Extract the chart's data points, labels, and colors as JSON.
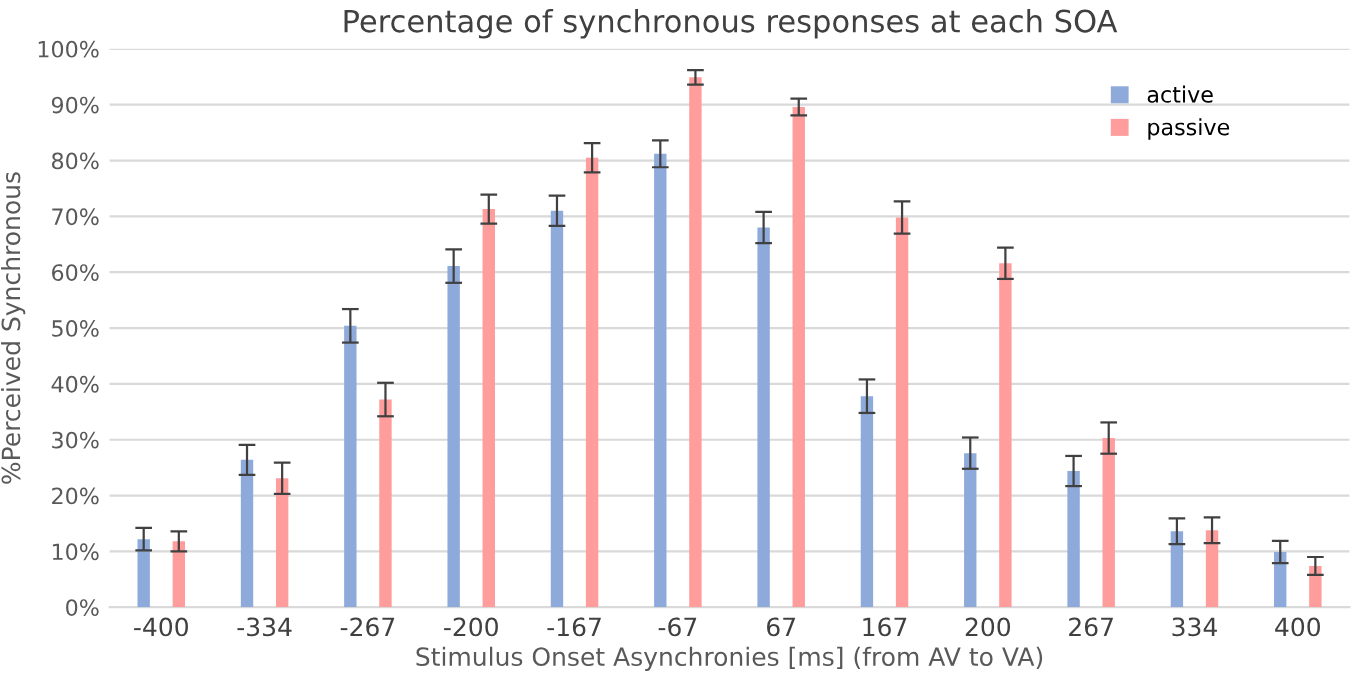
{
  "chart_data": {
    "type": "bar",
    "title": "Percentage of synchronous responses at each SOA",
    "xlabel": "Stimulus Onset Asynchronies [ms] (from AV to VA)",
    "ylabel": "%Perceived Synchronous",
    "categories": [
      "-400",
      "-334",
      "-267",
      "-200",
      "-167",
      "-67",
      "67",
      "167",
      "200",
      "267",
      "334",
      "400"
    ],
    "series": [
      {
        "name": "active",
        "color": "#8eaadb",
        "values": [
          12.2,
          26.4,
          50.4,
          61.1,
          71.0,
          81.2,
          68.0,
          37.8,
          27.6,
          24.4,
          13.6,
          9.9
        ],
        "errors": [
          2.0,
          2.7,
          3.0,
          3.0,
          2.7,
          2.4,
          2.8,
          3.0,
          2.8,
          2.7,
          2.3,
          2.0
        ]
      },
      {
        "name": "passive",
        "color": "#ff9c9c",
        "values": [
          11.8,
          23.1,
          37.2,
          71.3,
          80.5,
          94.9,
          89.6,
          69.8,
          61.6,
          30.3,
          13.8,
          7.4
        ],
        "errors": [
          1.8,
          2.8,
          3.0,
          2.6,
          2.6,
          1.3,
          1.5,
          2.9,
          2.8,
          2.8,
          2.3,
          1.6
        ]
      }
    ],
    "ylim": [
      0,
      100
    ],
    "yticks": [
      {
        "value": 0,
        "label": "0%"
      },
      {
        "value": 10,
        "label": "10%"
      },
      {
        "value": 20,
        "label": "20%"
      },
      {
        "value": 30,
        "label": "30%"
      },
      {
        "value": 40,
        "label": "40%"
      },
      {
        "value": 50,
        "label": "50%"
      },
      {
        "value": 60,
        "label": "60%"
      },
      {
        "value": 70,
        "label": "70%"
      },
      {
        "value": 80,
        "label": "80%"
      },
      {
        "value": 90,
        "label": "90%"
      },
      {
        "value": 100,
        "label": "100%"
      }
    ],
    "grid": "y",
    "legend": "top right"
  }
}
